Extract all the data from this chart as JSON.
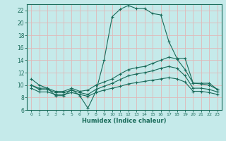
{
  "xlabel": "Humidex (Indice chaleur)",
  "xlim": [
    -0.5,
    23.5
  ],
  "ylim": [
    6,
    23
  ],
  "yticks": [
    6,
    8,
    10,
    12,
    14,
    16,
    18,
    20,
    22
  ],
  "xticks": [
    0,
    1,
    2,
    3,
    4,
    5,
    6,
    7,
    8,
    9,
    10,
    11,
    12,
    13,
    14,
    15,
    16,
    17,
    18,
    19,
    20,
    21,
    22,
    23
  ],
  "bg_color": "#c5eaea",
  "grid_color": "#e0b8b8",
  "line_color": "#1a6b5a",
  "curves": [
    {
      "x": [
        0,
        1,
        2,
        3,
        4,
        5,
        6,
        7,
        8,
        9,
        10,
        11,
        12,
        13,
        14,
        15,
        16,
        17,
        18,
        19,
        20,
        21,
        22,
        23
      ],
      "y": [
        11,
        10,
        9.5,
        8.3,
        8.3,
        9.3,
        8.3,
        6.3,
        9,
        14,
        21,
        22.2,
        22.8,
        22.3,
        22.3,
        21.5,
        21.3,
        17,
        14.3,
        14.3,
        10.3,
        10.3,
        10.3,
        9.3
      ]
    },
    {
      "x": [
        0,
        1,
        2,
        3,
        4,
        5,
        6,
        7,
        8,
        9,
        10,
        11,
        12,
        13,
        14,
        15,
        16,
        17,
        18,
        19,
        20,
        21,
        22,
        23
      ],
      "y": [
        10,
        9.5,
        9.5,
        9.0,
        9.0,
        9.5,
        9.0,
        9.2,
        10.0,
        10.5,
        11.0,
        11.8,
        12.5,
        12.8,
        13.0,
        13.5,
        14.0,
        14.5,
        14.2,
        12.5,
        10.3,
        10.2,
        10.0,
        9.3
      ]
    },
    {
      "x": [
        0,
        1,
        2,
        3,
        4,
        5,
        6,
        7,
        8,
        9,
        10,
        11,
        12,
        13,
        14,
        15,
        16,
        17,
        18,
        19,
        20,
        21,
        22,
        23
      ],
      "y": [
        10,
        9.3,
        9.3,
        8.8,
        8.8,
        9.2,
        8.8,
        8.5,
        9.3,
        9.8,
        10.3,
        10.9,
        11.5,
        11.8,
        12.0,
        12.3,
        12.7,
        13.0,
        12.7,
        11.5,
        9.5,
        9.5,
        9.3,
        8.9
      ]
    },
    {
      "x": [
        0,
        1,
        2,
        3,
        4,
        5,
        6,
        7,
        8,
        9,
        10,
        11,
        12,
        13,
        14,
        15,
        16,
        17,
        18,
        19,
        20,
        21,
        22,
        23
      ],
      "y": [
        9.5,
        8.9,
        8.9,
        8.5,
        8.5,
        8.8,
        8.5,
        8.2,
        8.8,
        9.2,
        9.5,
        9.8,
        10.2,
        10.4,
        10.6,
        10.8,
        11.0,
        11.2,
        11.0,
        10.5,
        9.0,
        9.0,
        8.8,
        8.5
      ]
    }
  ]
}
